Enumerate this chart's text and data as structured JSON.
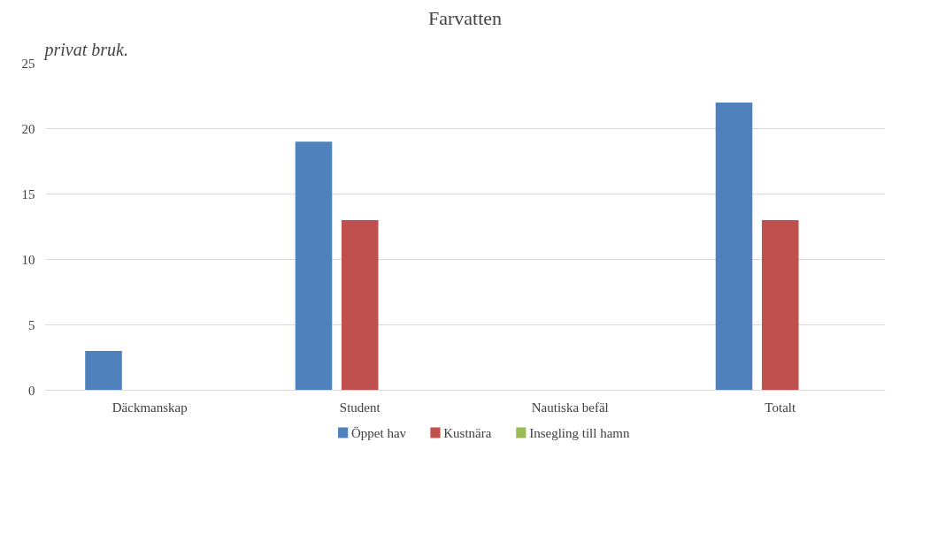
{
  "chart_data": {
    "type": "bar",
    "title": "Farvatten",
    "categories": [
      "Däckmanskap",
      "Student",
      "Nautiska befäl",
      "Totalt"
    ],
    "series": [
      {
        "name": "Öppet hav",
        "color": "#4f81bd",
        "values": [
          3,
          19,
          0,
          22
        ]
      },
      {
        "name": "Kustnära",
        "color": "#c0504d",
        "values": [
          0,
          13,
          0,
          13
        ]
      },
      {
        "name": "Insegling till hamn",
        "color": "#9bbb59",
        "values": [
          0,
          0,
          0,
          0
        ]
      }
    ],
    "ylim": [
      0,
      25
    ],
    "yticks": [
      0,
      5,
      10,
      15,
      20,
      25
    ],
    "grid": "y",
    "legend": "bottom",
    "annotations": [
      "privat bruk."
    ]
  }
}
